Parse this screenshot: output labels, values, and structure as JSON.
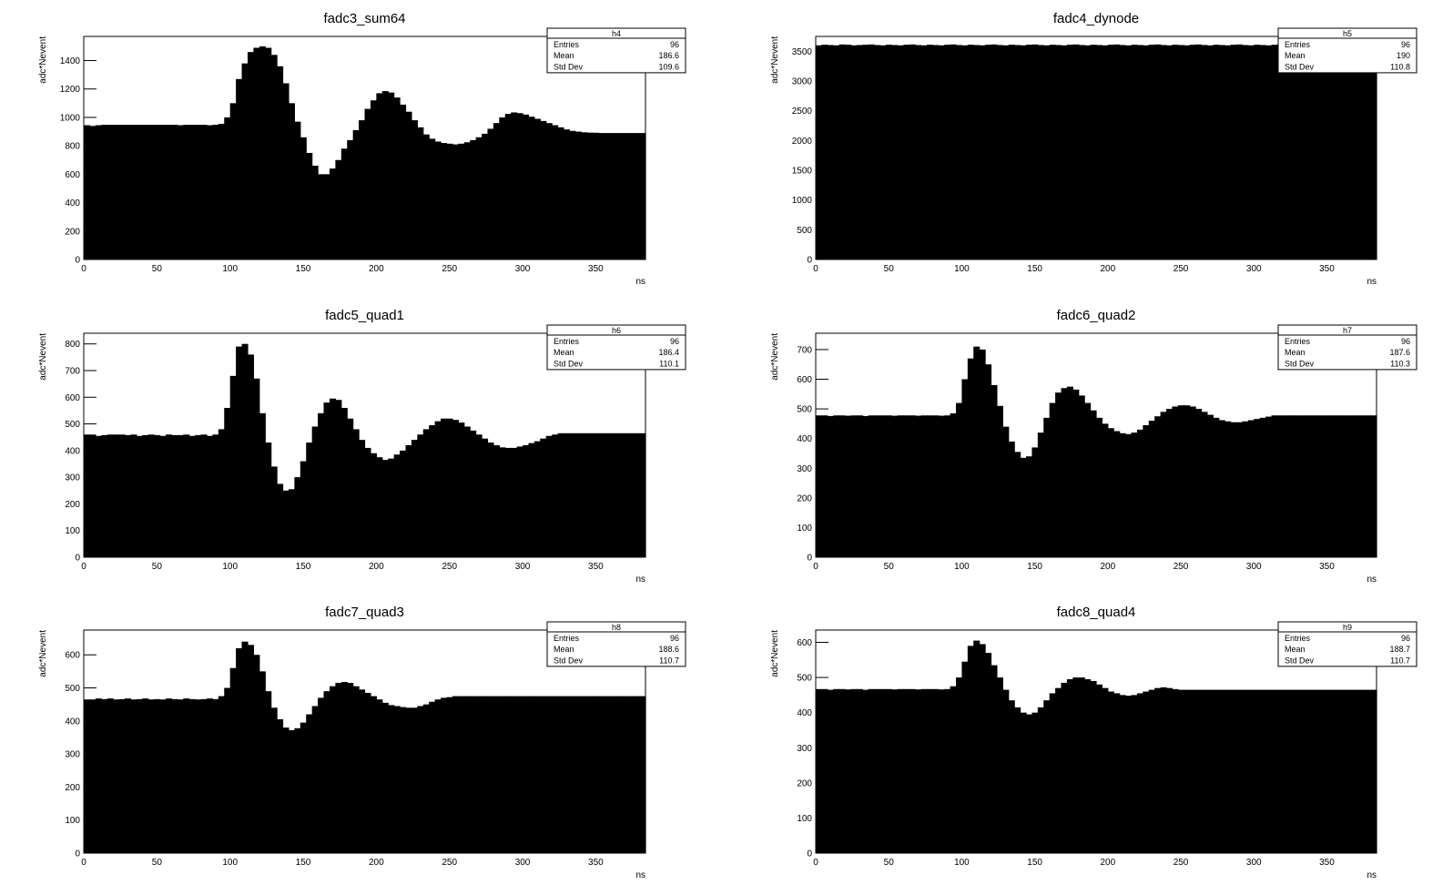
{
  "colors": {
    "fill": "#000000",
    "frame": "#000000",
    "background": "#ffffff"
  },
  "chart_data": [
    {
      "type": "bar",
      "title": "fadc3_sum64",
      "xlabel": "ns",
      "ylabel": "adc*Nevent",
      "xlim": [
        0,
        384
      ],
      "ylim": [
        0,
        1570
      ],
      "xticks": [
        0,
        50,
        100,
        150,
        200,
        250,
        300,
        350
      ],
      "yticks": [
        0,
        200,
        400,
        600,
        800,
        1000,
        1200,
        1400
      ],
      "stats": {
        "name": "h4",
        "rows": [
          [
            "Entries",
            "96"
          ],
          [
            "Mean",
            "186.6"
          ],
          [
            "Std Dev",
            "109.6"
          ]
        ]
      },
      "bins": 96,
      "values": [
        945,
        940,
        945,
        948,
        948,
        948,
        948,
        948,
        948,
        948,
        948,
        948,
        948,
        948,
        948,
        948,
        945,
        948,
        948,
        948,
        948,
        945,
        948,
        955,
        1000,
        1100,
        1270,
        1380,
        1460,
        1490,
        1500,
        1490,
        1440,
        1360,
        1240,
        1100,
        970,
        860,
        750,
        660,
        600,
        600,
        640,
        700,
        780,
        840,
        910,
        980,
        1060,
        1120,
        1170,
        1185,
        1175,
        1140,
        1090,
        1040,
        980,
        930,
        880,
        850,
        830,
        820,
        815,
        810,
        815,
        825,
        840,
        860,
        885,
        920,
        960,
        1000,
        1025,
        1035,
        1030,
        1020,
        1005,
        990,
        975,
        960,
        945,
        930,
        915,
        905,
        900,
        895,
        893,
        892,
        890,
        890,
        890,
        890,
        890,
        890,
        890,
        890
      ]
    },
    {
      "type": "bar",
      "title": "fadc4_dynode",
      "xlabel": "ns",
      "ylabel": "adc*Nevent",
      "xlim": [
        0,
        384
      ],
      "ylim": [
        0,
        3750
      ],
      "xticks": [
        0,
        50,
        100,
        150,
        200,
        250,
        300,
        350
      ],
      "yticks": [
        0,
        500,
        1000,
        1500,
        2000,
        2500,
        3000,
        3500
      ],
      "stats": {
        "name": "h5",
        "rows": [
          [
            "Entries",
            "96"
          ],
          [
            "Mean",
            "190"
          ],
          [
            "Std Dev",
            "110.8"
          ]
        ]
      },
      "bins": 96,
      "values": [
        3600,
        3610,
        3605,
        3600,
        3615,
        3610,
        3600,
        3605,
        3610,
        3615,
        3605,
        3600,
        3610,
        3605,
        3600,
        3610,
        3615,
        3605,
        3600,
        3610,
        3605,
        3600,
        3610,
        3615,
        3605,
        3600,
        3610,
        3605,
        3600,
        3610,
        3615,
        3605,
        3600,
        3610,
        3605,
        3600,
        3610,
        3615,
        3605,
        3600,
        3610,
        3605,
        3600,
        3610,
        3615,
        3605,
        3600,
        3610,
        3605,
        3600,
        3610,
        3615,
        3605,
        3600,
        3610,
        3605,
        3600,
        3610,
        3615,
        3605,
        3600,
        3610,
        3605,
        3600,
        3610,
        3615,
        3605,
        3600,
        3610,
        3605,
        3600,
        3610,
        3615,
        3605,
        3600,
        3610,
        3605,
        3600,
        3610,
        3615,
        3605,
        3600,
        3610,
        3605,
        3600,
        3610,
        3615,
        3605,
        3600,
        3610,
        3605,
        3600,
        3610,
        3615,
        3605,
        3600
      ]
    },
    {
      "type": "bar",
      "title": "fadc5_quad1",
      "xlabel": "ns",
      "ylabel": "adc*Nevent",
      "xlim": [
        0,
        384
      ],
      "ylim": [
        0,
        840
      ],
      "xticks": [
        0,
        50,
        100,
        150,
        200,
        250,
        300,
        350
      ],
      "yticks": [
        0,
        100,
        200,
        300,
        400,
        500,
        600,
        700,
        800
      ],
      "stats": {
        "name": "h6",
        "rows": [
          [
            "Entries",
            "96"
          ],
          [
            "Mean",
            "186.4"
          ],
          [
            "Std Dev",
            "110.1"
          ]
        ]
      },
      "bins": 96,
      "values": [
        460,
        460,
        455,
        458,
        460,
        460,
        460,
        458,
        460,
        455,
        458,
        460,
        458,
        455,
        460,
        458,
        458,
        460,
        455,
        458,
        460,
        455,
        460,
        480,
        560,
        680,
        790,
        800,
        760,
        670,
        540,
        430,
        340,
        275,
        250,
        255,
        300,
        360,
        430,
        490,
        540,
        580,
        595,
        590,
        560,
        520,
        480,
        440,
        410,
        390,
        375,
        365,
        370,
        385,
        400,
        420,
        440,
        460,
        480,
        495,
        510,
        520,
        520,
        515,
        505,
        490,
        475,
        460,
        445,
        430,
        420,
        412,
        410,
        410,
        415,
        420,
        428,
        435,
        445,
        455,
        460,
        465,
        465,
        465,
        465,
        465,
        465,
        465,
        465,
        465,
        465,
        465,
        465,
        465,
        465,
        465
      ]
    },
    {
      "type": "bar",
      "title": "fadc6_quad2",
      "xlabel": "ns",
      "ylabel": "adc*Nevent",
      "xlim": [
        0,
        384
      ],
      "ylim": [
        0,
        755
      ],
      "xticks": [
        0,
        50,
        100,
        150,
        200,
        250,
        300,
        350
      ],
      "yticks": [
        0,
        100,
        200,
        300,
        400,
        500,
        600,
        700
      ],
      "stats": {
        "name": "h7",
        "rows": [
          [
            "Entries",
            "96"
          ],
          [
            "Mean",
            "187.6"
          ],
          [
            "Std Dev",
            "110.3"
          ]
        ]
      },
      "bins": 96,
      "values": [
        478,
        478,
        476,
        478,
        478,
        477,
        478,
        478,
        476,
        478,
        478,
        478,
        478,
        477,
        478,
        478,
        478,
        477,
        478,
        478,
        478,
        477,
        478,
        485,
        520,
        600,
        670,
        710,
        700,
        650,
        580,
        510,
        440,
        390,
        355,
        335,
        340,
        370,
        420,
        470,
        520,
        555,
        570,
        575,
        565,
        545,
        520,
        495,
        470,
        450,
        435,
        425,
        418,
        415,
        420,
        430,
        445,
        460,
        475,
        490,
        500,
        508,
        512,
        512,
        508,
        500,
        490,
        480,
        470,
        462,
        458,
        455,
        455,
        458,
        462,
        466,
        470,
        474,
        478,
        478,
        478,
        478,
        478,
        478,
        478,
        478,
        478,
        478,
        478,
        478,
        478,
        478,
        478,
        478,
        478,
        478
      ]
    },
    {
      "type": "bar",
      "title": "fadc7_quad3",
      "xlabel": "ns",
      "ylabel": "adc*Nevent",
      "xlim": [
        0,
        384
      ],
      "ylim": [
        0,
        675
      ],
      "xticks": [
        0,
        50,
        100,
        150,
        200,
        250,
        300,
        350
      ],
      "yticks": [
        0,
        100,
        200,
        300,
        400,
        500,
        600
      ],
      "stats": {
        "name": "h8",
        "rows": [
          [
            "Entries",
            "96"
          ],
          [
            "Mean",
            "188.6"
          ],
          [
            "Std Dev",
            "110.7"
          ]
        ]
      },
      "bins": 96,
      "values": [
        465,
        465,
        468,
        466,
        468,
        465,
        466,
        468,
        465,
        466,
        468,
        465,
        466,
        465,
        468,
        466,
        465,
        468,
        466,
        465,
        466,
        468,
        466,
        475,
        500,
        560,
        620,
        640,
        630,
        600,
        550,
        490,
        440,
        405,
        380,
        372,
        378,
        395,
        420,
        445,
        470,
        490,
        505,
        515,
        518,
        515,
        505,
        495,
        485,
        475,
        465,
        455,
        448,
        445,
        442,
        440,
        440,
        445,
        450,
        458,
        465,
        470,
        472,
        475,
        475,
        475,
        475,
        475,
        475,
        475,
        475,
        475,
        475,
        475,
        475,
        475,
        475,
        475,
        475,
        475,
        475,
        475,
        475,
        475,
        475,
        475,
        475,
        475,
        475,
        475,
        475,
        475,
        475,
        475,
        475,
        475
      ]
    },
    {
      "type": "bar",
      "title": "fadc8_quad4",
      "xlabel": "ns",
      "ylabel": "adc*Nevent",
      "xlim": [
        0,
        384
      ],
      "ylim": [
        0,
        635
      ],
      "xticks": [
        0,
        50,
        100,
        150,
        200,
        250,
        300,
        350
      ],
      "yticks": [
        0,
        100,
        200,
        300,
        400,
        500,
        600
      ],
      "stats": {
        "name": "h9",
        "rows": [
          [
            "Entries",
            "96"
          ],
          [
            "Mean",
            "188.7"
          ],
          [
            "Std Dev",
            "110.7"
          ]
        ]
      },
      "bins": 96,
      "values": [
        467,
        467,
        465,
        467,
        467,
        466,
        467,
        467,
        465,
        467,
        467,
        467,
        467,
        466,
        467,
        467,
        467,
        466,
        467,
        467,
        467,
        466,
        467,
        475,
        500,
        545,
        590,
        605,
        595,
        570,
        535,
        500,
        465,
        435,
        415,
        400,
        395,
        400,
        415,
        435,
        455,
        470,
        485,
        495,
        500,
        500,
        495,
        490,
        480,
        470,
        460,
        455,
        450,
        448,
        450,
        455,
        460,
        465,
        470,
        472,
        470,
        467,
        465,
        465,
        465,
        465,
        465,
        465,
        465,
        465,
        465,
        465,
        465,
        465,
        465,
        465,
        465,
        465,
        465,
        465,
        465,
        465,
        465,
        465,
        465,
        465,
        465,
        465,
        465,
        465,
        465,
        465,
        465,
        465,
        465,
        465
      ]
    }
  ]
}
